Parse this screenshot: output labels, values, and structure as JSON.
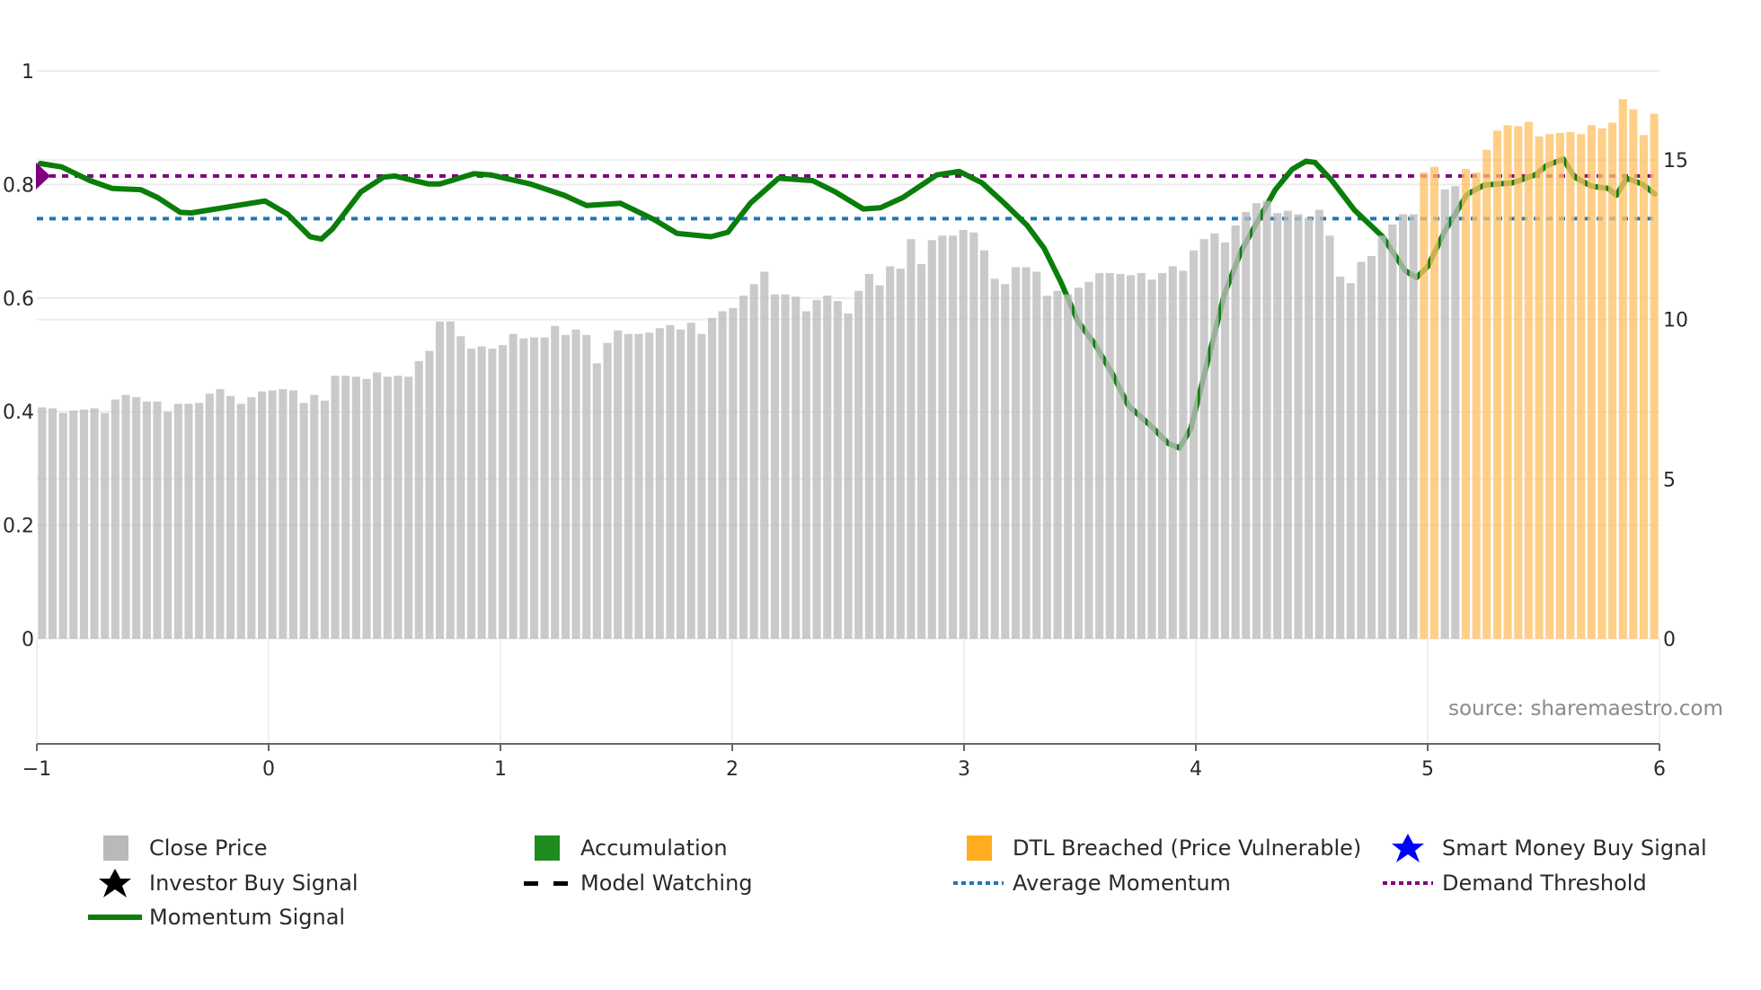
{
  "chart_data": {
    "type": "bar",
    "title": "",
    "source": "source: sharemaestro.com",
    "x_axis": {
      "range": [
        -1,
        6
      ],
      "ticks": [
        "−1",
        "0",
        "1",
        "2",
        "3",
        "4",
        "5",
        "6"
      ],
      "tick_values": [
        -1,
        0,
        1,
        2,
        3,
        4,
        5,
        6
      ]
    },
    "y_left": {
      "range": [
        0,
        1
      ],
      "ticks": [
        "0",
        "0.2",
        "0.4",
        "0.6",
        "0.8",
        "1"
      ],
      "tick_values": [
        0,
        0.2,
        0.4,
        0.6,
        0.8,
        1
      ]
    },
    "y_right": {
      "range": [
        0,
        17.79
      ],
      "ticks": [
        "0",
        "5",
        "10",
        "15"
      ],
      "tick_values": [
        0,
        5,
        10,
        15
      ]
    },
    "grid": true,
    "close_price": [
      7.25,
      7.22,
      7.07,
      7.15,
      7.18,
      7.22,
      7.07,
      7.5,
      7.64,
      7.57,
      7.43,
      7.43,
      7.11,
      7.36,
      7.36,
      7.39,
      7.68,
      7.82,
      7.61,
      7.36,
      7.57,
      7.75,
      7.78,
      7.82,
      7.78,
      7.39,
      7.64,
      7.46,
      8.24,
      8.24,
      8.21,
      8.14,
      8.35,
      8.21,
      8.24,
      8.21,
      8.7,
      9.02,
      9.94,
      9.94,
      9.48,
      9.09,
      9.16,
      9.09,
      9.2,
      9.55,
      9.41,
      9.44,
      9.44,
      9.8,
      9.52,
      9.69,
      9.52,
      8.63,
      9.27,
      9.66,
      9.55,
      9.55,
      9.59,
      9.73,
      9.83,
      9.69,
      9.9,
      9.55,
      10.05,
      10.26,
      10.36,
      10.75,
      11.11,
      11.5,
      10.79,
      10.79,
      10.72,
      10.26,
      10.61,
      10.75,
      10.58,
      10.19,
      10.9,
      11.43,
      11.07,
      11.67,
      11.6,
      12.52,
      11.74,
      12.49,
      12.63,
      12.63,
      12.81,
      12.73,
      12.17,
      11.28,
      11.11,
      11.64,
      11.64,
      11.5,
      10.75,
      10.9,
      10.79,
      11.0,
      11.18,
      11.46,
      11.46,
      11.43,
      11.39,
      11.46,
      11.25,
      11.46,
      11.67,
      11.53,
      12.17,
      12.52,
      12.7,
      12.42,
      12.95,
      13.37,
      13.65,
      13.72,
      13.34,
      13.41,
      13.3,
      13.19,
      13.44,
      12.63,
      11.35,
      11.14,
      11.81,
      11.99,
      12.63,
      12.98,
      13.3,
      13.3,
      14.61,
      14.79,
      14.08,
      14.18,
      14.72,
      14.61,
      15.32,
      15.92,
      16.09,
      16.06,
      16.2,
      15.74,
      15.81,
      15.85,
      15.88,
      15.81,
      16.09,
      15.99,
      16.17,
      16.91,
      16.59,
      15.78,
      16.45
    ],
    "dtl_breached_indices": [
      132,
      133,
      136,
      137,
      138,
      139,
      140,
      141,
      142,
      143,
      144,
      145,
      146,
      147,
      148,
      149,
      150,
      151,
      152,
      153,
      154
    ],
    "momentum_signal": [
      [
        -0.985,
        0.837
      ],
      [
        -0.893,
        0.831
      ],
      [
        -0.771,
        0.807
      ],
      [
        -0.674,
        0.793
      ],
      [
        -0.552,
        0.791
      ],
      [
        -0.479,
        0.777
      ],
      [
        -0.381,
        0.751
      ],
      [
        -0.333,
        0.75
      ],
      [
        -0.016,
        0.771
      ],
      [
        0.081,
        0.748
      ],
      [
        0.179,
        0.708
      ],
      [
        0.227,
        0.704
      ],
      [
        0.276,
        0.722
      ],
      [
        0.398,
        0.787
      ],
      [
        0.495,
        0.813
      ],
      [
        0.544,
        0.815
      ],
      [
        0.69,
        0.801
      ],
      [
        0.739,
        0.801
      ],
      [
        0.885,
        0.819
      ],
      [
        0.958,
        0.817
      ],
      [
        1.129,
        0.801
      ],
      [
        1.275,
        0.781
      ],
      [
        1.372,
        0.763
      ],
      [
        1.518,
        0.767
      ],
      [
        1.664,
        0.738
      ],
      [
        1.762,
        0.714
      ],
      [
        1.908,
        0.708
      ],
      [
        1.981,
        0.716
      ],
      [
        2.078,
        0.767
      ],
      [
        2.2,
        0.811
      ],
      [
        2.346,
        0.807
      ],
      [
        2.444,
        0.787
      ],
      [
        2.565,
        0.757
      ],
      [
        2.639,
        0.759
      ],
      [
        2.736,
        0.777
      ],
      [
        2.882,
        0.817
      ],
      [
        2.98,
        0.823
      ],
      [
        3.077,
        0.803
      ],
      [
        3.174,
        0.767
      ],
      [
        3.272,
        0.728
      ],
      [
        3.345,
        0.688
      ],
      [
        3.418,
        0.628
      ],
      [
        3.491,
        0.559
      ],
      [
        3.564,
        0.519
      ],
      [
        3.637,
        0.469
      ],
      [
        3.71,
        0.41
      ],
      [
        3.808,
        0.374
      ],
      [
        3.881,
        0.344
      ],
      [
        3.929,
        0.336
      ],
      [
        3.978,
        0.37
      ],
      [
        4.051,
        0.489
      ],
      [
        4.124,
        0.608
      ],
      [
        4.197,
        0.684
      ],
      [
        4.27,
        0.738
      ],
      [
        4.343,
        0.791
      ],
      [
        4.416,
        0.827
      ],
      [
        4.475,
        0.841
      ],
      [
        4.514,
        0.839
      ],
      [
        4.587,
        0.807
      ],
      [
        4.684,
        0.755
      ],
      [
        4.806,
        0.708
      ],
      [
        4.904,
        0.648
      ],
      [
        4.952,
        0.636
      ],
      [
        5.001,
        0.656
      ],
      [
        5.074,
        0.718
      ],
      [
        5.171,
        0.783
      ],
      [
        5.244,
        0.799
      ],
      [
        5.366,
        0.803
      ],
      [
        5.464,
        0.817
      ],
      [
        5.512,
        0.833
      ],
      [
        5.585,
        0.845
      ],
      [
        5.634,
        0.813
      ],
      [
        5.707,
        0.797
      ],
      [
        5.78,
        0.793
      ],
      [
        5.814,
        0.781
      ],
      [
        5.858,
        0.811
      ],
      [
        5.926,
        0.801
      ],
      [
        5.98,
        0.783
      ]
    ],
    "average_momentum": 0.74,
    "demand_threshold": 0.815,
    "legend_placement": "bottom",
    "legend": [
      {
        "label": "Close Price",
        "symbol": "square",
        "color": "#b9b9b9"
      },
      {
        "label": "Accumulation",
        "symbol": "square",
        "color": "#1e8c1e"
      },
      {
        "label": "DTL Breached (Price Vulnerable)",
        "symbol": "square",
        "color": "#ffad1f"
      },
      {
        "label": "Smart Money Buy Signal",
        "symbol": "star",
        "color": "#0000ff"
      },
      {
        "label": "Investor Buy Signal",
        "symbol": "star",
        "color": "#000000"
      },
      {
        "label": "Model Watching",
        "symbol": "dash",
        "color": "#000000"
      },
      {
        "label": "Average Momentum",
        "symbol": "dot",
        "color": "#1f77b4"
      },
      {
        "label": "Demand Threshold",
        "symbol": "dot",
        "color": "#800080"
      },
      {
        "label": "Momentum Signal",
        "symbol": "line",
        "color": "#0a7d0a"
      }
    ]
  }
}
